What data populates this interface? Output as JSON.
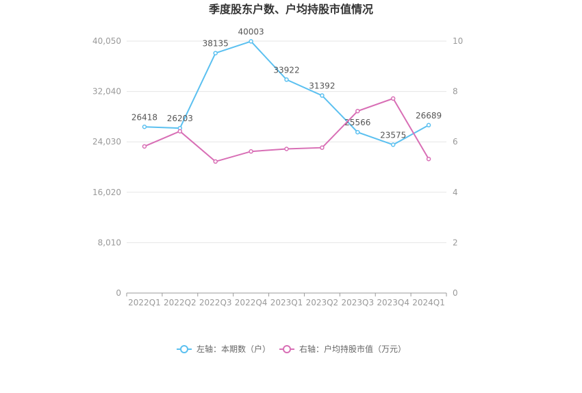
{
  "chart_data": {
    "type": "line",
    "title": "季度股东户数、户均持股市值情况",
    "categories": [
      "2022Q1",
      "2022Q2",
      "2022Q3",
      "2022Q4",
      "2023Q1",
      "2023Q2",
      "2023Q3",
      "2023Q4",
      "2024Q1"
    ],
    "left_axis": {
      "ticks": [
        "0",
        "8,010",
        "16,020",
        "24,030",
        "32,040",
        "40,050"
      ],
      "range": [
        0,
        40050
      ]
    },
    "right_axis": {
      "ticks": [
        "0",
        "2",
        "4",
        "6",
        "8",
        "10"
      ],
      "range": [
        0,
        10
      ]
    },
    "grid": true,
    "legend_position": "bottom",
    "series": [
      {
        "name": "左轴：本期数（户）",
        "axis": "left",
        "color": "#5bc0f0",
        "values": [
          26418,
          26203,
          38135,
          40003,
          33922,
          31392,
          25566,
          23575,
          26689
        ],
        "labels": [
          "26418",
          "26203",
          "38135",
          "40003",
          "33922",
          "31392",
          "25566",
          "23575",
          "26689"
        ]
      },
      {
        "name": "右轴：户均持股市值（万元）",
        "axis": "right",
        "color": "#d86eb5",
        "values": [
          5.82,
          6.42,
          5.22,
          5.62,
          5.72,
          5.77,
          7.22,
          7.72,
          5.32
        ]
      }
    ]
  }
}
